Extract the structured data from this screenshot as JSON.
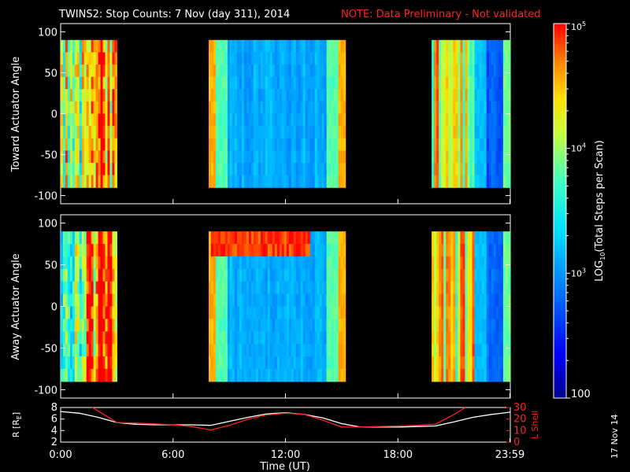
{
  "header": {
    "title": "TWINS2: Stop Counts:  7 Nov (day 311), 2014",
    "note": "NOTE: Data Preliminary - Not validated"
  },
  "footer": {
    "date_stamp": "17 Nov 14"
  },
  "colors": {
    "background": "#000000",
    "axis": "#ffffff",
    "note": "#ff2020",
    "r_line": "#ffffff",
    "lshell_line": "#ff2020"
  },
  "chart_data": [
    {
      "type": "heatmap",
      "name": "toward",
      "ylabel": "Toward Actuator Angle",
      "ylim": [
        -110,
        110
      ],
      "yticks": [
        100,
        50,
        0,
        -50,
        -100
      ],
      "xlim": [
        0,
        24
      ],
      "data_yrange": [
        -90,
        90
      ],
      "segments": [
        {
          "start": 0.0,
          "end": 3.0,
          "style": "noisy"
        },
        {
          "start": 7.9,
          "end": 15.2,
          "style": "smooth"
        },
        {
          "start": 19.8,
          "end": 24.0,
          "style": "noisy_then_smooth"
        }
      ]
    },
    {
      "type": "heatmap",
      "name": "away",
      "ylabel": "Away Actuator Angle",
      "ylim": [
        -110,
        110
      ],
      "yticks": [
        100,
        50,
        0,
        -50,
        -100
      ],
      "xlim": [
        0,
        24
      ],
      "data_yrange": [
        -90,
        90
      ],
      "segments": [
        {
          "start": 0.0,
          "end": 3.0,
          "style": "noisy"
        },
        {
          "start": 7.9,
          "end": 15.2,
          "style": "smooth_hot_top"
        },
        {
          "start": 19.8,
          "end": 24.0,
          "style": "noisy_then_smooth"
        }
      ]
    },
    {
      "type": "line",
      "name": "orbit",
      "ylabel_left": "R [R",
      "ylabel_left_sub": "E",
      "ylabel_left_end": "]",
      "ylabel_right": "L Shell",
      "ylim_left": [
        2,
        8
      ],
      "yticks_left": [
        2,
        4,
        6,
        8
      ],
      "ylim_right": [
        0,
        30
      ],
      "yticks_right": [
        0,
        10,
        20,
        30
      ],
      "series": [
        {
          "name": "R",
          "axis": "left",
          "color": "#ffffff",
          "x": [
            0,
            1,
            2,
            3,
            4,
            5,
            6,
            7,
            8,
            9,
            10,
            11,
            12,
            13,
            14,
            15,
            16,
            17,
            18,
            19,
            20,
            21,
            22,
            23,
            24
          ],
          "y": [
            7.3,
            7.0,
            6.3,
            5.4,
            5.1,
            5.0,
            5.0,
            5.0,
            4.9,
            5.6,
            6.3,
            6.9,
            7.1,
            6.8,
            6.2,
            5.2,
            4.6,
            4.6,
            4.6,
            4.7,
            4.8,
            5.5,
            6.3,
            6.8,
            7.2
          ]
        },
        {
          "name": "L Shell",
          "axis": "right",
          "color": "#ff2020",
          "x": [
            1.7,
            2.5,
            3.0,
            4.0,
            5.0,
            6.0,
            7.0,
            8.0,
            9.0,
            10.0,
            11.0,
            12.0,
            13.0,
            14.0,
            15.0,
            16.0,
            17.0,
            18.0,
            19.0,
            20.0,
            21.0,
            21.6
          ],
          "y": [
            30,
            22,
            17,
            16.5,
            15.8,
            15,
            13.5,
            10.5,
            14.5,
            20,
            23.5,
            25,
            24,
            19,
            13,
            13,
            13.5,
            14,
            14.5,
            15.5,
            24,
            30
          ]
        }
      ]
    }
  ],
  "xaxis": {
    "label": "Time (UT)",
    "ticks": [
      {
        "t": 0,
        "label": "0:00"
      },
      {
        "t": 6,
        "label": "6:00"
      },
      {
        "t": 12,
        "label": "12:00"
      },
      {
        "t": 18,
        "label": "18:00"
      },
      {
        "t": 23.98,
        "label": "23:59"
      }
    ]
  },
  "colorbar": {
    "title": "LOG",
    "title_sub": "10",
    "title_rest": "(Total Steps per Scan)",
    "min": 100,
    "max": 100000,
    "ticks": [
      {
        "v": 100000,
        "base": "10",
        "exp": "5"
      },
      {
        "v": 10000,
        "base": "10",
        "exp": "4"
      },
      {
        "v": 1000,
        "base": "10",
        "exp": "3"
      },
      {
        "v": 100,
        "label": "100"
      }
    ]
  }
}
